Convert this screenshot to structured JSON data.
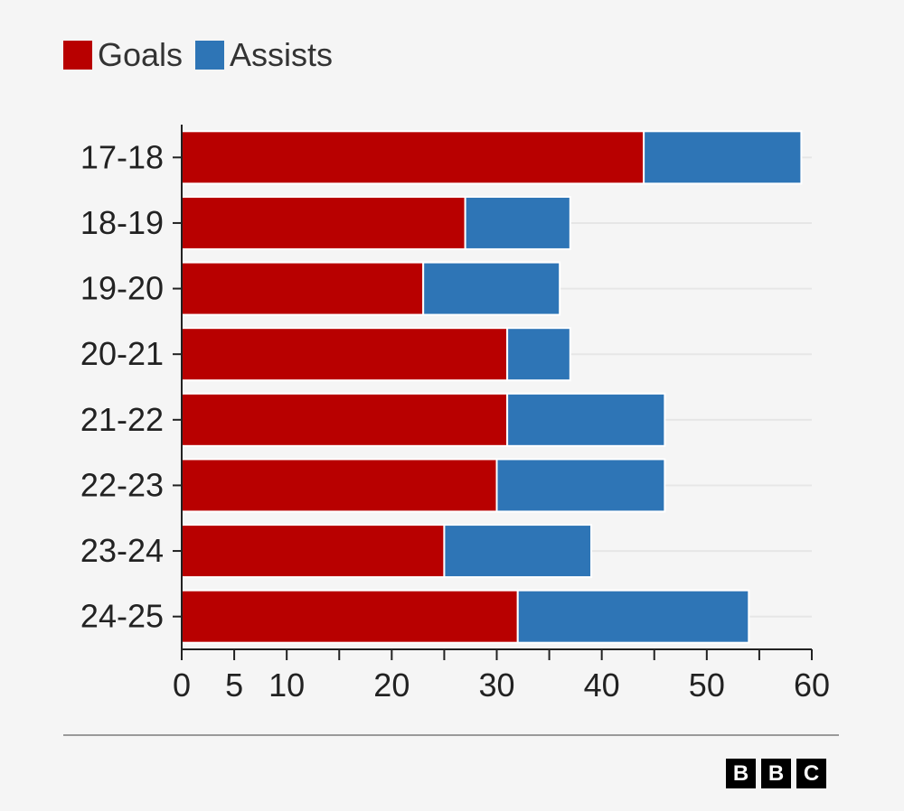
{
  "legend": [
    {
      "label": "Goals",
      "color": "#b80000"
    },
    {
      "label": "Assists",
      "color": "#2e75b6"
    }
  ],
  "chart_data": {
    "type": "bar",
    "orientation": "horizontal",
    "stacked": true,
    "categories": [
      "17-18",
      "18-19",
      "19-20",
      "20-21",
      "21-22",
      "22-23",
      "23-24",
      "24-25"
    ],
    "series": [
      {
        "name": "Goals",
        "color": "#b80000",
        "values": [
          44,
          27,
          23,
          31,
          31,
          30,
          25,
          32
        ]
      },
      {
        "name": "Assists",
        "color": "#2e75b6",
        "values": [
          15,
          10,
          13,
          6,
          15,
          16,
          14,
          22
        ]
      }
    ],
    "xlim": [
      0,
      60
    ],
    "xticks": [
      0,
      5,
      10,
      20,
      30,
      40,
      50,
      60
    ],
    "xtick_marks": [
      0,
      5,
      10,
      15,
      20,
      25,
      30,
      35,
      40,
      45,
      50,
      55,
      60
    ],
    "grid": "horizontal",
    "legend_position": "top-left"
  },
  "logo": {
    "letters": [
      "B",
      "B",
      "C"
    ]
  }
}
